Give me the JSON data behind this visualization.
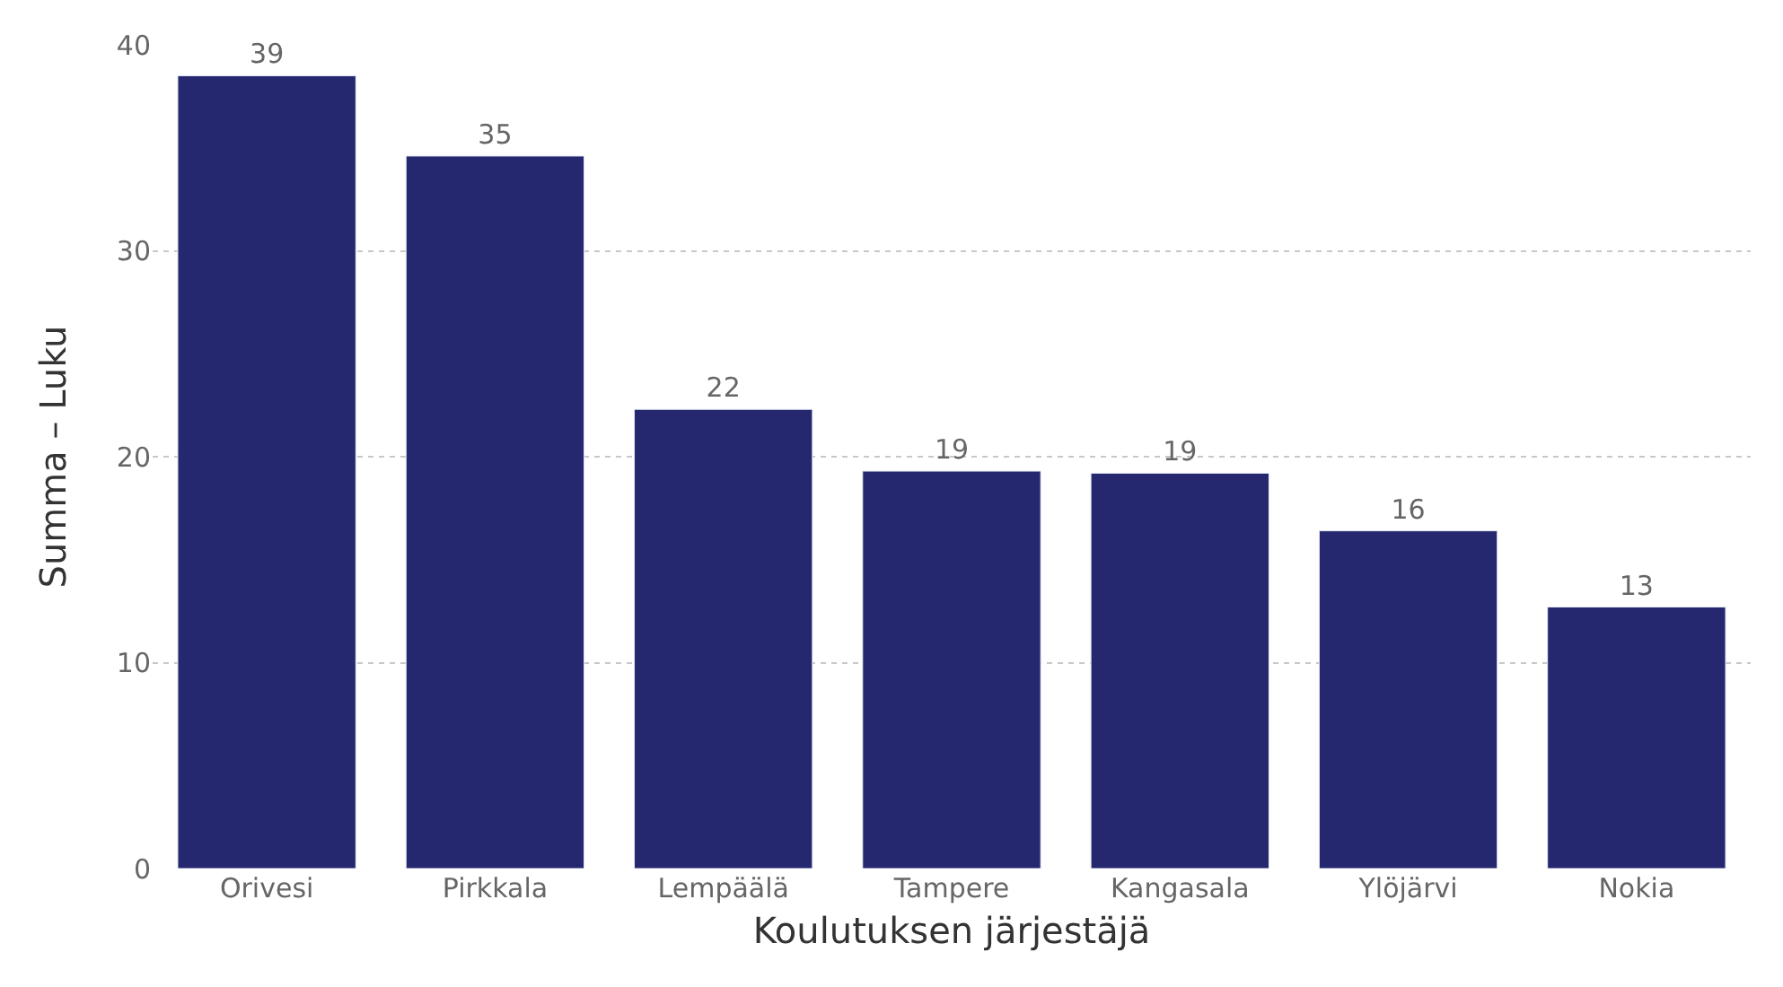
{
  "chart_data": {
    "type": "bar",
    "xlabel": "Koulutuksen järjestäjä",
    "ylabel": "Summa – Luku",
    "categories": [
      "Orivesi",
      "Pirkkala",
      "Lempäälä",
      "Tampere",
      "Kangasala",
      "Ylöjärvi",
      "Nokia"
    ],
    "values": [
      38.5,
      34.6,
      22.3,
      19.3,
      19.2,
      16.4,
      12.7
    ],
    "value_labels": [
      "39",
      "35",
      "22",
      "19",
      "19",
      "16",
      "13"
    ],
    "color": "#25276f",
    "ylim": [
      0,
      40
    ],
    "yticks": [
      0,
      10,
      20,
      30,
      40
    ],
    "grid": "y",
    "legend": false
  }
}
